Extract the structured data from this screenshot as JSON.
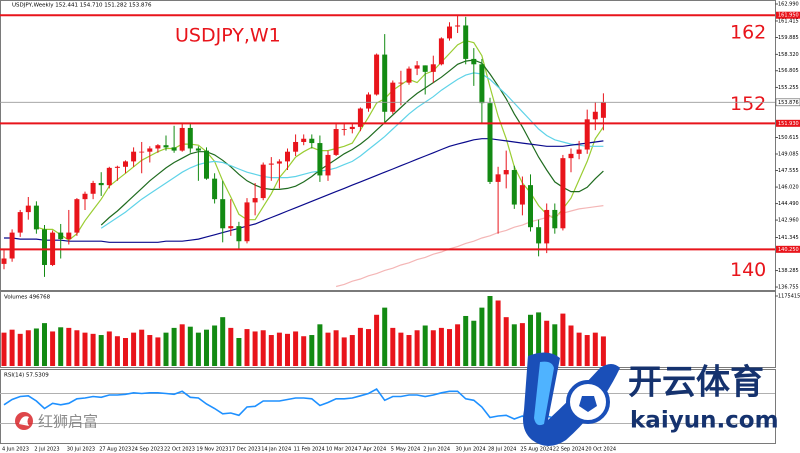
{
  "chart_data": [
    {
      "type": "candlestick",
      "title": "USDJPY,W1",
      "subtitle": "USDJPY,Weekly 152.441 154.710 151.282 153.876",
      "categories": [
        "4 Jun 2023",
        null,
        null,
        null,
        "2 Jul 2023",
        null,
        null,
        null,
        "30 Jul 2023",
        null,
        null,
        null,
        "27 Aug 2023",
        null,
        null,
        null,
        "24 Sep 2023",
        null,
        null,
        null,
        "22 Oct 2023",
        null,
        null,
        null,
        "19 Nov 2023",
        null,
        null,
        null,
        "17 Dec 2023",
        null,
        null,
        null,
        "14 Jan 2024",
        null,
        null,
        null,
        "11 Feb 2024",
        null,
        null,
        null,
        "10 Mar 2024",
        null,
        null,
        null,
        "7 Apr 2024",
        null,
        null,
        null,
        "5 May 2024",
        null,
        null,
        null,
        "2 Jun 2024",
        null,
        null,
        null,
        "30 Jun 2024",
        null,
        null,
        null,
        "28 Jul 2024",
        null,
        null,
        null,
        "25 Aug 2024",
        null,
        null,
        null,
        "22 Sep 2024",
        null,
        null,
        null,
        "20 Oct 2024",
        null,
        null
      ],
      "open": [
        138.9,
        139.4,
        141.8,
        143.7,
        144.3,
        142.1,
        138.8,
        141.8,
        141.2,
        141.8,
        144.9,
        145.4,
        146.4,
        146.2,
        147.8,
        147.9,
        148.4,
        149.3,
        149.3,
        149.6,
        149.9,
        149.7,
        149.4,
        151.5,
        149.6,
        149.4,
        146.8,
        144.9,
        142.2,
        142.4,
        141.0,
        144.6,
        145.0,
        148.1,
        148.2,
        148.4,
        149.3,
        150.2,
        150.5,
        150.1,
        147.1,
        149.0,
        151.4,
        151.4,
        151.6,
        153.3,
        154.6,
        158.3,
        153.0,
        155.7,
        155.7,
        157.0,
        157.3,
        156.7,
        157.4,
        159.8,
        160.9,
        161.0,
        157.9,
        157.4,
        153.8,
        146.5,
        147.2,
        147.6,
        144.4,
        146.2,
        142.3,
        140.8,
        143.9,
        142.2,
        148.7,
        149.1,
        149.5,
        152.3,
        152.441
      ],
      "high": [
        140.2,
        142.1,
        143.9,
        145.1,
        144.7,
        142.5,
        142.0,
        142.6,
        143.9,
        145.0,
        145.6,
        146.6,
        147.4,
        147.9,
        148.0,
        148.5,
        149.7,
        150.2,
        149.8,
        150.0,
        150.8,
        151.7,
        151.9,
        151.9,
        149.8,
        149.7,
        147.3,
        146.6,
        144.9,
        142.8,
        145.0,
        146.4,
        148.3,
        148.8,
        148.6,
        149.6,
        150.9,
        150.9,
        150.9,
        150.8,
        149.4,
        151.9,
        151.9,
        151.9,
        153.4,
        154.8,
        158.4,
        160.2,
        155.9,
        156.8,
        157.2,
        157.7,
        157.3,
        158.2,
        159.9,
        161.3,
        161.95,
        161.8,
        158.9,
        157.9,
        154.3,
        147.9,
        149.4,
        148.0,
        147.0,
        147.2,
        143.0,
        144.5,
        144.5,
        149.0,
        149.6,
        150.3,
        153.2,
        153.9,
        154.71
      ],
      "low": [
        138.4,
        139.1,
        141.4,
        143.0,
        141.7,
        137.7,
        138.7,
        139.4,
        140.7,
        141.5,
        143.9,
        144.9,
        145.2,
        145.9,
        146.6,
        147.3,
        147.9,
        147.3,
        148.3,
        149.2,
        149.4,
        149.2,
        149.3,
        149.2,
        146.6,
        146.7,
        144.5,
        140.9,
        141.5,
        140.3,
        140.8,
        143.4,
        144.8,
        146.6,
        145.9,
        147.6,
        148.9,
        149.9,
        149.6,
        146.5,
        146.6,
        148.9,
        150.8,
        151.0,
        151.2,
        153.0,
        154.5,
        151.9,
        152.8,
        153.6,
        155.5,
        156.4,
        154.6,
        155.7,
        157.3,
        159.6,
        160.3,
        157.4,
        155.4,
        151.9,
        146.3,
        141.7,
        145.9,
        144.0,
        143.4,
        141.9,
        139.6,
        139.9,
        141.7,
        142.0,
        147.4,
        148.6,
        149.1,
        151.3,
        151.282
      ],
      "close": [
        139.4,
        141.8,
        143.7,
        144.3,
        142.1,
        138.8,
        141.8,
        141.2,
        141.8,
        144.9,
        145.4,
        146.4,
        146.2,
        147.8,
        147.9,
        148.4,
        149.3,
        149.3,
        149.6,
        149.9,
        149.7,
        149.4,
        151.5,
        149.6,
        149.4,
        146.8,
        144.9,
        142.2,
        142.4,
        141.0,
        144.6,
        145.0,
        148.1,
        148.2,
        148.4,
        149.3,
        150.2,
        150.5,
        150.1,
        147.1,
        149.0,
        151.4,
        151.4,
        151.6,
        153.3,
        154.6,
        158.3,
        153.0,
        155.7,
        155.7,
        157.0,
        157.3,
        156.7,
        157.4,
        159.8,
        160.9,
        161.0,
        157.9,
        157.4,
        153.8,
        146.5,
        147.2,
        147.6,
        144.4,
        146.2,
        142.3,
        140.8,
        143.9,
        142.2,
        148.7,
        149.1,
        149.5,
        152.3,
        153.0,
        153.876
      ],
      "up_color": "#e8141b",
      "down_color": "#138a13",
      "overlays": [
        {
          "color": "#9acd32",
          "values": [
            null,
            null,
            null,
            null,
            142.3,
            142.1,
            142.1,
            141.6,
            141.1,
            141.7,
            142.9,
            143.9,
            144.9,
            146.1,
            146.7,
            147.3,
            147.9,
            148.5,
            148.9,
            149.3,
            149.6,
            149.6,
            150.0,
            150.0,
            149.9,
            149.3,
            148.4,
            146.6,
            145.1,
            143.5,
            143.0,
            143.0,
            144.2,
            145.4,
            146.9,
            147.8,
            148.8,
            149.3,
            149.7,
            149.4,
            149.4,
            149.6,
            149.8,
            150.1,
            151.3,
            152.5,
            153.8,
            154.2,
            155.0,
            155.5,
            156.0,
            155.7,
            156.5,
            156.8,
            157.6,
            158.4,
            159.2,
            159.6,
            159.4,
            158.2,
            155.3,
            152.6,
            150.5,
            147.9,
            146.4,
            145.5,
            144.3,
            143.5,
            143.1,
            144.0,
            145.0,
            146.7,
            148.4,
            150.5,
            151.6
          ]
        },
        {
          "color": "#1f6b1f",
          "values": [
            null,
            null,
            null,
            null,
            null,
            null,
            null,
            null,
            null,
            null,
            null,
            null,
            142.5,
            143.2,
            143.8,
            144.5,
            145.2,
            145.9,
            146.6,
            147.2,
            147.8,
            148.3,
            148.7,
            149.1,
            149.3,
            149.3,
            149.0,
            148.5,
            147.9,
            147.2,
            146.6,
            146.2,
            145.9,
            145.8,
            145.8,
            145.9,
            146.1,
            146.5,
            147.0,
            147.6,
            148.1,
            148.6,
            149.1,
            149.5,
            150.0,
            150.6,
            151.3,
            152.0,
            152.7,
            153.4,
            154.1,
            154.7,
            155.2,
            155.7,
            156.2,
            156.8,
            157.4,
            157.7,
            157.8,
            157.5,
            156.5,
            155.4,
            154.2,
            152.8,
            151.6,
            150.2,
            148.8,
            147.6,
            146.5,
            146.0,
            145.6,
            145.6,
            146.0,
            146.8,
            147.5
          ]
        },
        {
          "color": "#5fd3e8",
          "values": [
            null,
            null,
            null,
            null,
            null,
            null,
            null,
            null,
            null,
            null,
            null,
            null,
            142.2,
            142.7,
            143.2,
            143.7,
            144.3,
            144.9,
            145.4,
            145.9,
            146.4,
            146.9,
            147.4,
            147.8,
            148.1,
            148.3,
            148.4,
            148.3,
            148.0,
            147.7,
            147.4,
            147.2,
            147.0,
            146.9,
            146.9,
            146.9,
            147.0,
            147.2,
            147.4,
            147.5,
            147.6,
            147.8,
            148.1,
            148.4,
            148.9,
            149.5,
            150.1,
            150.7,
            151.4,
            152.1,
            152.8,
            153.4,
            153.9,
            154.4,
            155.0,
            155.5,
            156.0,
            156.4,
            156.6,
            156.5,
            156.0,
            155.3,
            154.6,
            153.8,
            153.0,
            152.2,
            151.4,
            150.8,
            150.4,
            150.2,
            150.0,
            149.9,
            149.8,
            149.8,
            149.8
          ]
        },
        {
          "color": "#0a0a8c",
          "values": [
            141.3,
            141.3,
            141.2,
            141.2,
            141.2,
            141.1,
            141.1,
            141.1,
            141.0,
            141.0,
            141.0,
            141.0,
            141.0,
            140.9,
            140.9,
            140.9,
            140.9,
            140.9,
            140.9,
            140.9,
            141.0,
            141.0,
            141.0,
            141.1,
            141.2,
            141.4,
            141.6,
            141.8,
            142.0,
            142.2,
            142.4,
            142.6,
            142.9,
            143.2,
            143.5,
            143.8,
            144.1,
            144.4,
            144.7,
            145.0,
            145.3,
            145.6,
            145.9,
            146.2,
            146.5,
            146.8,
            147.1,
            147.4,
            147.7,
            148.0,
            148.3,
            148.6,
            148.9,
            149.2,
            149.5,
            149.8,
            150.0,
            150.2,
            150.4,
            150.5,
            150.5,
            150.4,
            150.3,
            150.2,
            150.1,
            150.0,
            149.9,
            149.8,
            149.8,
            149.8,
            149.9,
            150.0,
            150.1,
            150.2,
            150.3
          ]
        },
        {
          "color": "#f4b6b6",
          "values": [
            null,
            null,
            null,
            null,
            null,
            null,
            null,
            null,
            null,
            null,
            null,
            null,
            null,
            null,
            null,
            null,
            null,
            null,
            null,
            null,
            null,
            null,
            null,
            null,
            null,
            null,
            null,
            null,
            null,
            null,
            null,
            null,
            null,
            null,
            null,
            null,
            null,
            null,
            null,
            null,
            null,
            136.8,
            137.0,
            137.3,
            137.5,
            137.8,
            138.0,
            138.3,
            138.5,
            138.8,
            139.0,
            139.3,
            139.5,
            139.8,
            140.0,
            140.3,
            140.5,
            140.8,
            141.0,
            141.3,
            141.5,
            141.8,
            142.0,
            142.3,
            142.5,
            142.8,
            143.0,
            143.2,
            143.4,
            143.6,
            143.8,
            144.0,
            144.1,
            144.2,
            144.3
          ]
        }
      ],
      "hlines": [
        {
          "value": 161.95,
          "label": "161.950",
          "note": "162"
        },
        {
          "value": 151.93,
          "label": "151.930",
          "note": "152"
        },
        {
          "value": 140.25,
          "label": "140.250",
          "note": "140"
        }
      ],
      "hline_color": "#e8141b",
      "ylim": [
        136.48,
        163.36
      ],
      "yticks": [
        {
          "value": 162.99,
          "label": "162.990"
        },
        161.415,
        159.885,
        {
          "value": 158.32,
          "label": "158.320"
        },
        156.805,
        155.255,
        150.615,
        149.085,
        147.555,
        {
          "value": 146.02,
          "label": "146.020"
        },
        {
          "value": 144.49,
          "label": "144.490"
        },
        {
          "value": 142.96,
          "label": "142.960"
        },
        141.345,
        138.285,
        136.755
      ]
    },
    {
      "type": "bar",
      "title": "Volumes 496768",
      "values": [
        560000,
        610000,
        540000,
        600000,
        630000,
        720000,
        580000,
        650000,
        640000,
        600000,
        560000,
        540000,
        520000,
        580000,
        500000,
        470000,
        560000,
        610000,
        520000,
        480000,
        560000,
        640000,
        700000,
        660000,
        560000,
        610000,
        680000,
        820000,
        640000,
        470000,
        620000,
        580000,
        600000,
        520000,
        560000,
        540000,
        580000,
        500000,
        520000,
        700000,
        560000,
        600000,
        480000,
        520000,
        640000,
        620000,
        860000,
        980000,
        640000,
        560000,
        520000,
        600000,
        680000,
        600000,
        640000,
        620000,
        700000,
        840000,
        760000,
        980000,
        1175415,
        1100000,
        820000,
        700000,
        720000,
        860000,
        900000,
        760000,
        700000,
        880000,
        680000,
        560000,
        520000,
        560000,
        496768
      ],
      "color_up": "#e8141b",
      "color_down": "#138a13",
      "ylim": [
        0,
        1175415
      ],
      "yticks": [
        1175415
      ]
    },
    {
      "type": "line",
      "title": "RSI(14) 57.5309",
      "values": [
        55,
        62,
        66,
        67,
        60,
        50,
        57,
        55,
        57,
        63,
        64,
        66,
        65,
        68,
        68,
        69,
        71,
        70,
        71,
        71,
        70,
        69,
        73,
        65,
        64,
        56,
        50,
        43,
        44,
        41,
        52,
        53,
        60,
        60,
        60,
        62,
        64,
        64,
        63,
        54,
        58,
        63,
        63,
        64,
        67,
        70,
        76,
        61,
        66,
        66,
        68,
        68,
        66,
        68,
        71,
        73,
        73,
        63,
        61,
        52,
        38,
        40,
        41,
        36,
        40,
        34,
        32,
        40,
        37,
        52,
        53,
        54,
        59,
        60,
        57.5309
      ],
      "color": "#1e90ff",
      "ylim": [
        0,
        100
      ],
      "hlines": [
        70,
        30
      ]
    }
  ],
  "watermark": {
    "left": "红狮启富",
    "brand": "开云体育",
    "site": "kaiyun.com"
  }
}
